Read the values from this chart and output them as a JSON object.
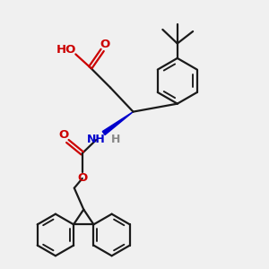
{
  "bg_color": "#f0f0f0",
  "bond_color": "#1a1a1a",
  "oxygen_color": "#cc0000",
  "nitrogen_color": "#0000cc",
  "line_width": 1.6,
  "figsize": [
    3.0,
    3.0
  ],
  "dpi": 100,
  "xlim": [
    0,
    10
  ],
  "ylim": [
    0,
    10
  ]
}
